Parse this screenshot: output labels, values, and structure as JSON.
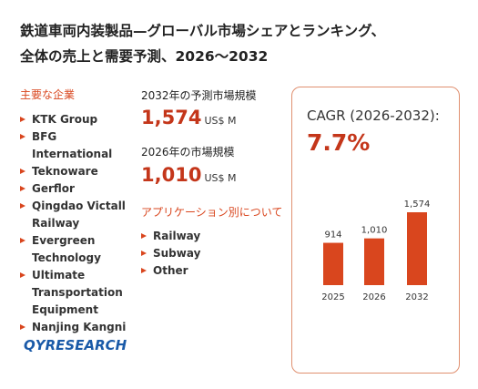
{
  "header": {
    "title_line1": "鉄道車両内装製品—グローバル市場シェアとランキング、",
    "title_line2": "全体の売上と需要予測、2026～2032"
  },
  "companies": {
    "heading": "主要な企業",
    "items": [
      "KTK Group",
      "BFG International",
      "Teknoware",
      "Gerflor",
      "Qingdao Victall Railway",
      "Evergreen Technology",
      "Ultimate Transportation Equipment",
      "Nanjing Kangni"
    ]
  },
  "market": {
    "forecast_label": "2032年の予測市場規模",
    "forecast_value": "1,574",
    "unit": "US$ M",
    "current_label": "2026年の市場規模",
    "current_value": "1,010"
  },
  "applications": {
    "heading": "アプリケーション別について",
    "items": [
      "Railway",
      "Subway",
      "Other"
    ]
  },
  "cagr": {
    "label": "CAGR (2026-2032):",
    "value": "7.7%"
  },
  "logo": {
    "text": "QYRESEARCH"
  },
  "chart_data": {
    "type": "bar",
    "categories": [
      "2025",
      "2026",
      "2032"
    ],
    "values": [
      914,
      1010,
      1574
    ],
    "value_labels": [
      "914",
      "1,010",
      "1,574"
    ],
    "color": "#d9461e"
  }
}
